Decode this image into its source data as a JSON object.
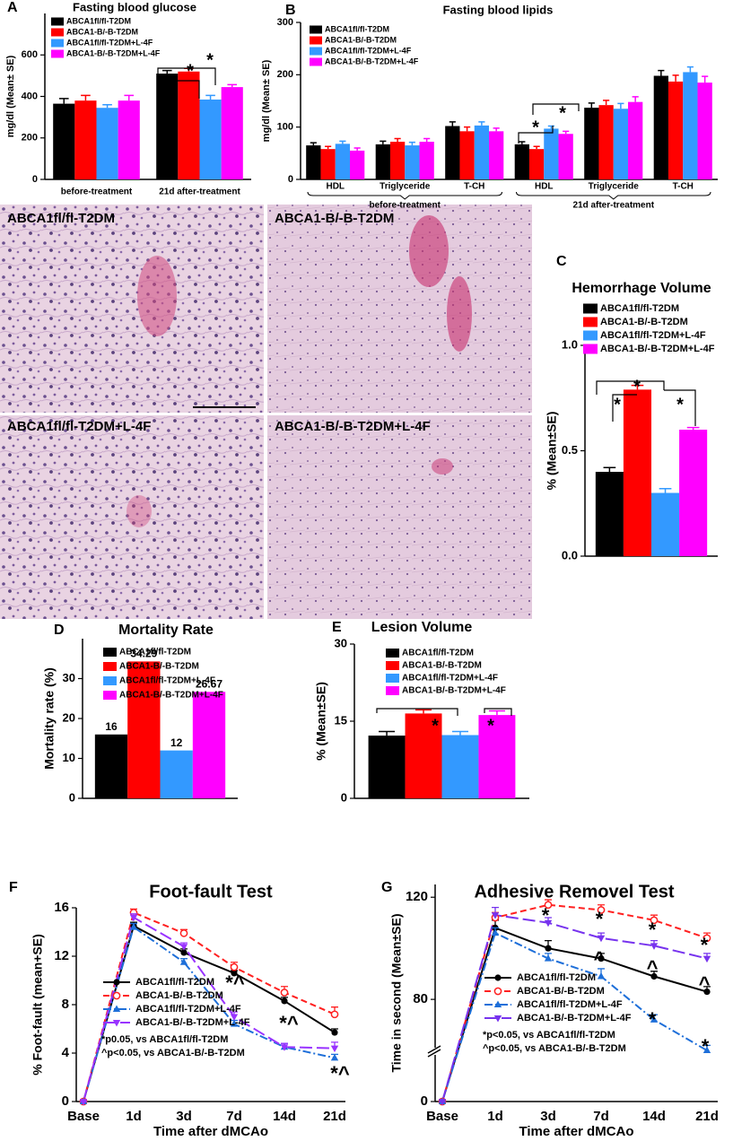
{
  "chart_data": [
    {
      "type": "bar",
      "panel": "A",
      "title": "Fasting blood glucose",
      "ylabel": "mg/dl (Mean± SE)",
      "categories": [
        "before-treatment",
        "21d after-treatment"
      ],
      "series": [
        {
          "name": "ABCA1fl/fl-T2DM",
          "color": "#000000",
          "values": [
            365,
            510
          ],
          "errors": [
            25,
            15
          ]
        },
        {
          "name": "ABCA1-B/-B-T2DM",
          "color": "#ff0000",
          "values": [
            380,
            520
          ],
          "errors": [
            25,
            15
          ]
        },
        {
          "name": "ABCA1fl/fl-T2DM+L-4F",
          "color": "#3399ff",
          "values": [
            345,
            385
          ],
          "errors": [
            15,
            20
          ]
        },
        {
          "name": "ABCA1-B/-B-T2DM+L-4F",
          "color": "#ff00ff",
          "values": [
            380,
            445
          ],
          "errors": [
            25,
            12
          ]
        }
      ],
      "ylim": [
        0,
        800
      ],
      "yticks": [
        0,
        200,
        400,
        600
      ],
      "annotations": [
        {
          "text": "*",
          "color": "#000000"
        },
        {
          "text": "*",
          "color": "#000000"
        }
      ]
    },
    {
      "type": "bar",
      "panel": "B",
      "title": "Fasting blood lipids",
      "ylabel": "mg/dl (Mean± SE)",
      "categories": [
        "HDL",
        "Triglyceride",
        "T-CH",
        "HDL",
        "Triglyceride",
        "T-CH"
      ],
      "groups": [
        "before-treatment",
        "21d after-treatment"
      ],
      "series": [
        {
          "name": "ABCA1fl/fl-T2DM",
          "color": "#000000",
          "values": [
            65,
            67,
            102,
            67,
            137,
            198
          ],
          "errors": [
            5,
            6,
            8,
            5,
            9,
            10
          ]
        },
        {
          "name": "ABCA1-B/-B-T2DM",
          "color": "#ff0000",
          "values": [
            58,
            72,
            92,
            58,
            142,
            187
          ],
          "errors": [
            5,
            6,
            8,
            5,
            9,
            12
          ]
        },
        {
          "name": "ABCA1fl/fl-T2DM+L-4F",
          "color": "#3399ff",
          "values": [
            68,
            65,
            103,
            97,
            135,
            205
          ],
          "errors": [
            5,
            6,
            7,
            5,
            10,
            10
          ]
        },
        {
          "name": "ABCA1-B/-B-T2DM+L-4F",
          "color": "#ff00ff",
          "values": [
            55,
            72,
            92,
            87,
            148,
            185
          ],
          "errors": [
            5,
            6,
            6,
            5,
            10,
            12
          ]
        }
      ],
      "ylim": [
        0,
        300
      ],
      "yticks": [
        0,
        100,
        200,
        300
      ],
      "annotations": [
        {
          "text": "*",
          "color": "#000000"
        },
        {
          "text": "*",
          "color": "#000000"
        }
      ]
    },
    {
      "type": "bar",
      "panel": "C",
      "title": "Hemorrhage Volume",
      "ylabel": "% (Mean±SE)",
      "series": [
        {
          "name": "ABCA1fl/fl-T2DM",
          "color": "#000000",
          "values": [
            0.4
          ],
          "errors": [
            0.02
          ]
        },
        {
          "name": "ABCA1-B/-B-T2DM",
          "color": "#ff0000",
          "values": [
            0.79
          ],
          "errors": [
            0.02
          ]
        },
        {
          "name": "ABCA1fl/fl-T2DM+L-4F",
          "color": "#3399ff",
          "values": [
            0.3
          ],
          "errors": [
            0.02
          ]
        },
        {
          "name": "ABCA1-B/-B-T2DM+L-4F",
          "color": "#ff00ff",
          "values": [
            0.6
          ],
          "errors": [
            0.01
          ]
        }
      ],
      "ylim": [
        0,
        1
      ],
      "yticks": [
        {
          "value": 0,
          "label": "0.0"
        },
        0.5,
        {
          "value": 1,
          "label": "1.0"
        }
      ],
      "annotations": [
        {
          "text": "*",
          "color": "#000000"
        },
        {
          "text": "*",
          "color": "#000000"
        },
        {
          "text": "*",
          "color": "#000000"
        }
      ]
    },
    {
      "type": "bar",
      "panel": "D",
      "title": "Mortality Rate",
      "ylabel": "Mortality rate (%)",
      "data_labels": true,
      "series": [
        {
          "name": "ABCA1fl/fl-T2DM",
          "color": "#000000",
          "values": [
            16
          ]
        },
        {
          "name": "ABCA1-B/-B-T2DM",
          "color": "#ff0000",
          "values": [
            34.29
          ]
        },
        {
          "name": "ABCA1fl/fl-T2DM+L-4F",
          "color": "#3399ff",
          "values": [
            12
          ]
        },
        {
          "name": "ABCA1-B/-B-T2DM+L-4F",
          "color": "#ff00ff",
          "values": [
            26.67
          ]
        }
      ],
      "ylim": [
        0,
        40
      ],
      "yticks": [
        0,
        10,
        20,
        30
      ]
    },
    {
      "type": "bar",
      "panel": "E",
      "title": "Lesion Volume",
      "ylabel": "% (Mean±SE)",
      "series": [
        {
          "name": "ABCA1fl/fl-T2DM",
          "color": "#000000",
          "values": [
            12.2
          ],
          "errors": [
            0.8
          ]
        },
        {
          "name": "ABCA1-B/-B-T2DM",
          "color": "#ff0000",
          "values": [
            16.5
          ],
          "errors": [
            0.7
          ]
        },
        {
          "name": "ABCA1fl/fl-T2DM+L-4F",
          "color": "#3399ff",
          "values": [
            12.3
          ],
          "errors": [
            0.7
          ]
        },
        {
          "name": "ABCA1-B/-B-T2DM+L-4F",
          "color": "#ff00ff",
          "values": [
            16.2
          ],
          "errors": [
            0.8
          ]
        }
      ],
      "ylim": [
        0,
        30
      ],
      "yticks": [
        0,
        15,
        30
      ],
      "annotations": [
        {
          "text": "*",
          "color": "#000000"
        },
        {
          "text": "*",
          "color": "#000000"
        }
      ]
    },
    {
      "type": "line",
      "panel": "F",
      "title": "Foot-fault Test",
      "ylabel": "% Foot-fault (mean+SE)",
      "xlabel": "Time after dMCAo",
      "categories": [
        "Base",
        "1d",
        "3d",
        "7d",
        "14d",
        "21d"
      ],
      "series": [
        {
          "name": "ABCA1fl/fl-T2DM",
          "color": "#000000",
          "linestyle": "solid",
          "marker": "circle",
          "values": [
            0,
            14.5,
            12.3,
            10.6,
            8.3,
            5.7
          ],
          "errors": [
            0,
            0.3,
            0.3,
            0.2,
            0.3,
            0.3
          ]
        },
        {
          "name": "ABCA1-B/-B-T2DM",
          "color": "#ff2020",
          "linestyle": "dashed",
          "marker": "open-circle",
          "values": [
            0,
            15.6,
            13.9,
            11.1,
            9.0,
            7.2
          ],
          "errors": [
            0,
            0.3,
            0.3,
            0.4,
            0.5,
            0.6
          ]
        },
        {
          "name": "ABCA1fl/fl-T2DM+L-4F",
          "color": "#1e6fd9",
          "linestyle": "dashdot",
          "marker": "triangle-up",
          "values": [
            0,
            14.4,
            11.5,
            6.4,
            4.5,
            3.6
          ],
          "errors": [
            0,
            0.3,
            0.3,
            0.3,
            0.3,
            0.3
          ]
        },
        {
          "name": "ABCA1-B/-B-T2DM+L-4F",
          "color": "#9933ff",
          "linestyle": "longdash",
          "marker": "triangle-down",
          "values": [
            0,
            15.2,
            12.8,
            7.0,
            4.5,
            4.4
          ],
          "errors": [
            0,
            0.3,
            0.3,
            0.4,
            0.3,
            0.5
          ]
        }
      ],
      "ylim": [
        0,
        16
      ],
      "yticks": [
        0,
        4,
        8,
        12,
        16
      ],
      "notes": [
        "*p0.05, vs ABCA1fl/fl-T2DM",
        "^p<0.05, vs ABCA1-B/-B-T2DM"
      ],
      "annotations": [
        {
          "text": "*^",
          "color": "#1e6fd9"
        },
        {
          "text": "*^",
          "color": "#1e6fd9"
        },
        {
          "text": "*^",
          "color": "#1e6fd9"
        }
      ]
    },
    {
      "type": "line",
      "panel": "G",
      "title": "Adhesive Removel Test",
      "ylabel": "Time in second (Mean±SE)",
      "xlabel": "Time after dMCAo",
      "categories": [
        "Base",
        "1d",
        "3d",
        "7d",
        "14d",
        "21d"
      ],
      "ybreak": true,
      "series": [
        {
          "name": "ABCA1fl/fl-T2DM",
          "color": "#000000",
          "linestyle": "solid",
          "marker": "circle",
          "values": [
            0,
            108,
            100,
            96,
            89,
            83
          ],
          "errors": [
            0,
            3,
            3,
            2,
            2,
            2
          ]
        },
        {
          "name": "ABCA1-B/-B-T2DM",
          "color": "#ff2020",
          "linestyle": "dashed",
          "marker": "open-circle",
          "values": [
            0,
            112,
            117,
            115,
            111,
            104
          ],
          "errors": [
            0,
            2,
            2,
            2,
            2,
            2
          ]
        },
        {
          "name": "ABCA1fl/fl-T2DM+L-4F",
          "color": "#1e6fd9",
          "linestyle": "dashdot",
          "marker": "triangle-up",
          "values": [
            0,
            106,
            96,
            89,
            72,
            60
          ],
          "errors": [
            0,
            2,
            2,
            3,
            2,
            2
          ]
        },
        {
          "name": "ABCA1-B/-B-T2DM+L-4F",
          "color": "#7733ee",
          "linestyle": "longdash",
          "marker": "triangle-down",
          "values": [
            0,
            113,
            110,
            104,
            101,
            96
          ],
          "errors": [
            0,
            3,
            2,
            2,
            2,
            2
          ]
        }
      ],
      "ylim": [
        0,
        125
      ],
      "yticks": [
        0,
        80,
        120
      ],
      "notes": [
        "*p<0.05, vs ABCA1fl/fl-T2DM",
        "^p<0.05, vs ABCA1-B/-B-T2DM"
      ],
      "annotations": [
        {
          "text": "*",
          "color": "#ff2020"
        },
        {
          "text": "*",
          "color": "#ff2020"
        },
        {
          "text": "*",
          "color": "#ff2020"
        },
        {
          "text": "*",
          "color": "#ff2020"
        },
        {
          "text": "^",
          "color": "#7733ee"
        },
        {
          "text": "^",
          "color": "#7733ee"
        },
        {
          "text": "^",
          "color": "#7733ee"
        },
        {
          "text": "*",
          "color": "#1e6fd9"
        },
        {
          "text": "*",
          "color": "#1e6fd9"
        }
      ]
    }
  ],
  "micrographs": [
    {
      "label": "ABCA1fl/fl-T2DM"
    },
    {
      "label": "ABCA1-B/-B-T2DM"
    },
    {
      "label": "ABCA1fl/fl-T2DM+L-4F"
    },
    {
      "label": "ABCA1-B/-B-T2DM+L-4F"
    }
  ]
}
